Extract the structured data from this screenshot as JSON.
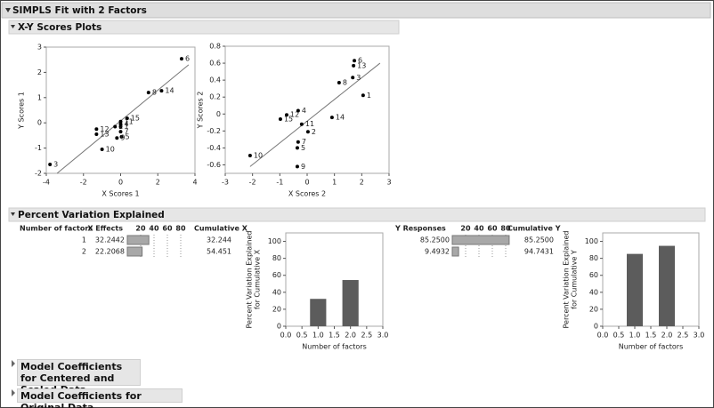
{
  "header": {
    "title": "SIMPLS Fit with 2 Factors"
  },
  "scores_section": {
    "title": "X-Y Scores Plots"
  },
  "variation_section": {
    "title": "Percent Variation Explained"
  },
  "chart_data": [
    {
      "type": "scatter",
      "xlabel": "X Scores 1",
      "ylabel": "Y Scores 1",
      "xlim": [
        -4,
        4
      ],
      "xticks": [
        -4,
        -2,
        0,
        2,
        4
      ],
      "ylim": [
        -2,
        3
      ],
      "yticks": [
        -2,
        -1,
        0,
        1,
        2,
        3
      ],
      "point_labels": [
        "1",
        "2",
        "3",
        "4",
        "5",
        "6",
        "7",
        "8",
        "9",
        "10",
        "11",
        "12",
        "13",
        "14",
        "15"
      ],
      "x": [
        0.0,
        -0.3,
        -3.8,
        0.0,
        0.05,
        3.28,
        0.0,
        1.5,
        -0.2,
        -1.0,
        0.0,
        -1.3,
        -1.3,
        2.2,
        0.35
      ],
      "y": [
        -0.15,
        -0.15,
        -1.65,
        -0.05,
        -0.55,
        2.54,
        -0.35,
        1.2,
        -0.6,
        -1.05,
        0.05,
        -0.25,
        -0.45,
        1.27,
        0.18
      ],
      "fit_line": {
        "x": [
          -3.42,
          3.66
        ],
        "y": [
          -2,
          2.3
        ]
      }
    },
    {
      "type": "scatter",
      "xlabel": "X Scores 2",
      "ylabel": "Y Scores 2",
      "xlim": [
        -3,
        3
      ],
      "xticks": [
        -3,
        -2,
        -1,
        0,
        1,
        2,
        3
      ],
      "ylim": [
        -0.7,
        0.8
      ],
      "yticks": [
        -0.6,
        -0.4,
        -0.2,
        0,
        0.2,
        0.4,
        0.6,
        0.8
      ],
      "point_labels": [
        "1",
        "2",
        "3",
        "4",
        "5",
        "6",
        "7",
        "8",
        "9",
        "10",
        "11",
        "12",
        "13",
        "14",
        "15"
      ],
      "x": [
        2.05,
        0.03,
        1.67,
        -0.33,
        -0.36,
        1.73,
        -0.33,
        1.17,
        -0.36,
        -2.09,
        -0.2,
        -0.75,
        1.7,
        0.91,
        -0.98
      ],
      "y": [
        0.22,
        -0.21,
        0.43,
        0.04,
        -0.4,
        0.63,
        -0.33,
        0.37,
        -0.62,
        -0.49,
        -0.12,
        -0.01,
        0.57,
        -0.04,
        -0.06
      ],
      "fit_line": {
        "x": [
          -2.09,
          2.67
        ],
        "y": [
          -0.62,
          0.6
        ]
      }
    },
    {
      "type": "bar",
      "xlabel": "Number of factors",
      "ylabel": [
        "Percent Variation Explained",
        "for Cumulative X"
      ],
      "x": [
        1,
        2
      ],
      "values": [
        32.244,
        54.451
      ],
      "color": "#5c5c5c",
      "xlim": [
        0,
        3
      ],
      "xticks": [
        {
          "value": 0,
          "label": "0.0"
        },
        0.5,
        {
          "value": 1,
          "label": "1.0"
        },
        1.5,
        {
          "value": 2,
          "label": "2.0"
        },
        2.5,
        {
          "value": 3,
          "label": "3.0"
        }
      ],
      "ylim": [
        0,
        110
      ],
      "yticks": [
        0,
        20,
        40,
        60,
        80,
        100
      ]
    },
    {
      "type": "bar",
      "xlabel": "Number of factors",
      "ylabel": [
        "Percent Variation Explained",
        "for Cumulative Y"
      ],
      "x": [
        1,
        2
      ],
      "values": [
        85.25,
        94.7431
      ],
      "color": "#5c5c5c",
      "xlim": [
        0,
        3
      ],
      "xticks": [
        {
          "value": 0,
          "label": "0.0"
        },
        0.5,
        {
          "value": 1,
          "label": "1.0"
        },
        1.5,
        {
          "value": 2,
          "label": "2.0"
        },
        2.5,
        {
          "value": 3,
          "label": "3.0"
        }
      ],
      "ylim": [
        0,
        110
      ],
      "yticks": [
        0,
        20,
        40,
        60,
        80,
        100
      ]
    }
  ],
  "table": {
    "columns": [
      "Number of factors",
      "X Effects",
      "Cumulative X",
      "Y Responses",
      "Cumulative Y"
    ],
    "factors": [
      1,
      2
    ],
    "x_effects": {
      "values": [
        32.2442,
        22.2068
      ],
      "value_labels": [
        "32.2442",
        "22.2068"
      ]
    },
    "cumulative_x": [
      32.244,
      54.451
    ],
    "y_responses": {
      "values": [
        85.25,
        9.4932
      ],
      "value_labels": [
        "85.2500",
        "9.4932"
      ]
    },
    "cumulative_y": {
      "values": [
        85.25,
        94.7431
      ],
      "value_labels": [
        "85.2500",
        "94.7431"
      ]
    },
    "bar_scale": {
      "xlim": [
        0,
        100
      ],
      "ticks": [
        20,
        40,
        60,
        80
      ]
    }
  },
  "collapsed_sections": [
    "Model Coefficients for Centered and Scaled Data",
    "Model Coefficients for Original Data"
  ]
}
